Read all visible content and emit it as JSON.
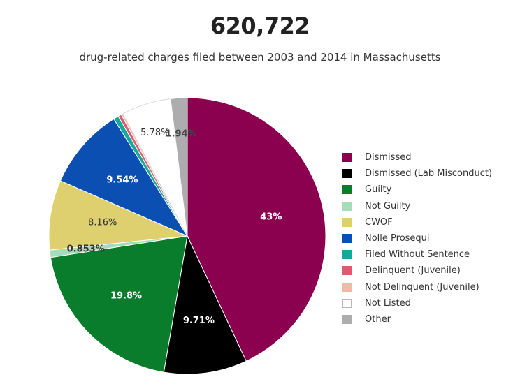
{
  "header": {
    "headline": "620,722",
    "subtitle": "drug-related charges filed between 2003 and 2014 in Massachusetts"
  },
  "chart_data": {
    "type": "pie",
    "title": "620,722",
    "subtitle": "drug-related charges filed between 2003 and 2014 in Massachusetts",
    "start_angle_deg": 0,
    "direction": "clockwise",
    "legend_position": "right",
    "slices": [
      {
        "name": "Dismissed",
        "value": 43,
        "label": "43%",
        "color": "#8c0050",
        "label_color": "#ffffff"
      },
      {
        "name": "Dismissed (Lab Misconduct)",
        "value": 9.71,
        "label": "9.71%",
        "color": "#000000",
        "label_color": "#ffffff"
      },
      {
        "name": "Guilty",
        "value": 19.8,
        "label": "19.8%",
        "color": "#0a7d2c",
        "label_color": "#ffffff"
      },
      {
        "name": "Not Guilty",
        "value": 0.853,
        "label": "0.853%",
        "color": "#a5dcb9",
        "label_color": "#333333"
      },
      {
        "name": "CWOF",
        "value": 8.16,
        "label": "8.16%",
        "color": "#dfd06f",
        "label_color": "#333333"
      },
      {
        "name": "Nolle Prosequi",
        "value": 9.54,
        "label": "9.54%",
        "color": "#0b4fb3",
        "label_color": "#ffffff"
      },
      {
        "name": "Filed Without Sentence",
        "value": 0.6,
        "label": "",
        "color": "#16a89b",
        "label_color": "#333333"
      },
      {
        "name": "Delinquent (Juvenile)",
        "value": 0.4,
        "label": "",
        "color": "#d95f70",
        "label_color": "#333333"
      },
      {
        "name": "Not Delinquent (Juvenile)",
        "value": 0.2,
        "label": "",
        "color": "#f7b7a8",
        "label_color": "#333333"
      },
      {
        "name": "Not Listed",
        "value": 5.78,
        "label": "5.78%",
        "color": "#ffffff",
        "label_color": "#333333"
      },
      {
        "name": "Other",
        "value": 1.94,
        "label": "1.94%",
        "color": "#adadad",
        "label_color": "#444444"
      }
    ]
  }
}
